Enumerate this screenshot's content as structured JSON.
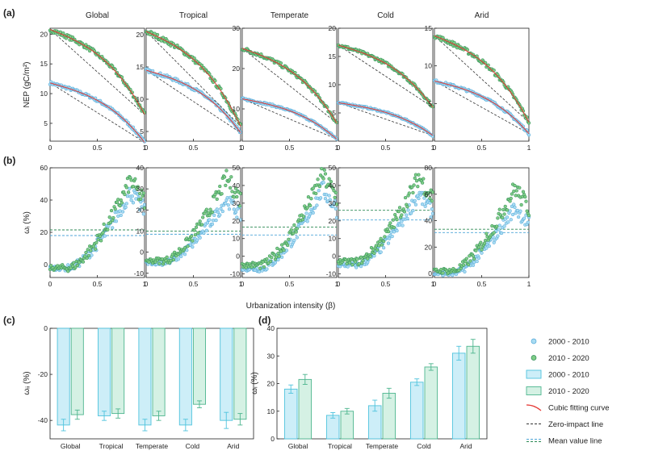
{
  "figure": {
    "panel_labels": [
      "(a)",
      "(b)",
      "(c)",
      "(d)"
    ],
    "x_axis_label_ab": "Urbanization intensity (β)",
    "legend": {
      "items": [
        {
          "label": "2000 - 2010",
          "kind": "circle",
          "fill": "#a9dcf2",
          "stroke": "#4fa6d8"
        },
        {
          "label": "2010 - 2020",
          "kind": "circle",
          "fill": "#7fcc86",
          "stroke": "#2c8a54"
        },
        {
          "label": "2000 - 2010",
          "kind": "bar",
          "fill": "#cdeef8",
          "stroke": "#4fc3dd"
        },
        {
          "label": "2010 - 2020",
          "kind": "bar",
          "fill": "#d5f1e4",
          "stroke": "#4db58e"
        },
        {
          "label": "Cubic fitting curve",
          "kind": "curve",
          "stroke": "#e53935"
        },
        {
          "label": "Zero-impact line",
          "kind": "dashed",
          "stroke": "#333333"
        },
        {
          "label": "Mean value line",
          "kind": "dashed-pair",
          "stroke": "#4fa6d8",
          "stroke2": "#2c8a54"
        }
      ]
    }
  },
  "colors": {
    "p1_fill": "#a9dcf2",
    "p1_stroke": "#4fa6d8",
    "p2_fill": "#7fcc86",
    "p2_stroke": "#2c8a54",
    "fit": "#e53935",
    "zero": "#333333",
    "bar1_fill": "#cdeef8",
    "bar1_stroke": "#4fc3dd",
    "bar2_fill": "#d5f1e4",
    "bar2_stroke": "#4db58e"
  },
  "chart_data": [
    {
      "panel": "(a)",
      "type": "scatter",
      "ylabel": "NEP (gC/m²)",
      "subplots": [
        {
          "title": "Global",
          "ylim": [
            2,
            21
          ],
          "yticks": [
            5,
            10,
            15,
            20
          ],
          "xticks": [
            "0",
            "0.5",
            "1"
          ],
          "series": [
            {
              "period": "2000 - 2010",
              "start": 11.8,
              "end": 1.8
            },
            {
              "period": "2010 - 2020",
              "start": 20.8,
              "end": 6.5
            }
          ]
        },
        {
          "title": "Tropical",
          "ylim": [
            3.5,
            21
          ],
          "yticks": [
            5,
            10,
            15,
            20
          ],
          "xticks": [
            "0",
            "0.5",
            "1"
          ],
          "series": [
            {
              "period": "2000 - 2010",
              "start": 14.5,
              "end": 4.8
            },
            {
              "period": "2010 - 2020",
              "start": 20.5,
              "end": 5.8
            }
          ]
        },
        {
          "title": "Temperate",
          "ylim": [
            2,
            30
          ],
          "yticks": [
            10,
            20,
            30
          ],
          "xticks": [
            "0",
            "0.5",
            "1"
          ],
          "series": [
            {
              "period": "2000 - 2010",
              "start": 12.5,
              "end": 2.5
            },
            {
              "period": "2010 - 2020",
              "start": 25,
              "end": 6.5
            }
          ]
        },
        {
          "title": "Cold",
          "ylim": [
            0,
            20
          ],
          "yticks": [
            5,
            10,
            15,
            20
          ],
          "xticks": [
            "0",
            "0.5",
            "1"
          ],
          "series": [
            {
              "period": "2000 - 2010",
              "start": 6.8,
              "end": 1
            },
            {
              "period": "2010 - 2020",
              "start": 17,
              "end": 6
            }
          ]
        },
        {
          "title": "Arid",
          "ylim": [
            0,
            15
          ],
          "yticks": [
            5,
            10,
            15
          ],
          "xticks": [
            "0",
            "0.5",
            "1"
          ],
          "series": [
            {
              "period": "2000 - 2010",
              "start": 8,
              "end": 1
            },
            {
              "period": "2010 - 2020",
              "start": 14,
              "end": 2.5
            }
          ]
        }
      ]
    },
    {
      "panel": "(b)",
      "type": "scatter",
      "ylabel": "ωᵢ (%)",
      "subplots": [
        {
          "title": "Global",
          "ylim": [
            -8,
            60
          ],
          "yticks": [
            0,
            20,
            40,
            60
          ],
          "xticks": [
            "0",
            "0.5",
            "1"
          ],
          "mean": [
            18,
            21.5
          ],
          "peak": [
            45,
            52
          ],
          "low": [
            -2,
            -2
          ]
        },
        {
          "title": "Tropical",
          "ylim": [
            -12,
            40
          ],
          "yticks": [
            -10,
            0,
            10,
            20,
            30,
            40
          ],
          "xticks": [
            "0",
            "0.5",
            "1"
          ],
          "mean": [
            8.5,
            10
          ],
          "peak": [
            25,
            35
          ],
          "low": [
            -5,
            -4
          ]
        },
        {
          "title": "Temperate",
          "ylim": [
            -12,
            50
          ],
          "yticks": [
            -10,
            0,
            10,
            20,
            30,
            40,
            50
          ],
          "xticks": [
            "0",
            "0.5",
            "1"
          ],
          "mean": [
            12,
            16.5
          ],
          "peak": [
            38,
            46
          ],
          "low": [
            -7,
            -5
          ]
        },
        {
          "title": "Cold",
          "ylim": [
            -12,
            50
          ],
          "yticks": [
            -10,
            0,
            10,
            20,
            30,
            40,
            50
          ],
          "xticks": [
            "0",
            "0.5",
            "1"
          ],
          "mean": [
            20.5,
            26
          ],
          "peak": [
            35,
            45
          ],
          "low": [
            -5,
            -3
          ]
        },
        {
          "title": "Arid",
          "ylim": [
            -3,
            80
          ],
          "yticks": [
            0,
            20,
            40,
            60,
            80
          ],
          "xticks": [
            "0",
            "0.5",
            "1"
          ],
          "mean": [
            31,
            33.5
          ],
          "peak": [
            50,
            65
          ],
          "low": [
            0,
            2
          ]
        }
      ]
    },
    {
      "panel": "(c)",
      "type": "bar",
      "ylabel": "ωᵢᵢ (%)",
      "categories": [
        "Global",
        "Tropical",
        "Temperate",
        "Cold",
        "Arid"
      ],
      "ylim": [
        -48,
        0
      ],
      "yticks": [
        0,
        -20,
        -40
      ],
      "series": [
        {
          "name": "2000 - 2010",
          "values": [
            -42,
            -38,
            -42,
            -42,
            -40
          ],
          "errors": [
            2.5,
            2,
            2.5,
            2.5,
            3.5
          ]
        },
        {
          "name": "2010 - 2020",
          "values": [
            -37.5,
            -37,
            -38,
            -33,
            -39.5
          ],
          "errors": [
            2,
            2,
            2,
            1.5,
            2.5
          ]
        }
      ]
    },
    {
      "panel": "(d)",
      "type": "bar",
      "ylabel": "ωᵢ (%)",
      "categories": [
        "Global",
        "Tropical",
        "Temperate",
        "Cold",
        "Arid"
      ],
      "ylim": [
        0,
        40
      ],
      "yticks": [
        0,
        10,
        20,
        30,
        40
      ],
      "series": [
        {
          "name": "2000 - 2010",
          "values": [
            18,
            8.5,
            12,
            20.5,
            31
          ],
          "errors": [
            1.5,
            1,
            2,
            1.2,
            2.5
          ]
        },
        {
          "name": "2010 - 2020",
          "values": [
            21.5,
            10,
            16.5,
            26,
            33.5
          ],
          "errors": [
            1.8,
            1,
            1.8,
            1.2,
            2.5
          ]
        }
      ]
    }
  ]
}
